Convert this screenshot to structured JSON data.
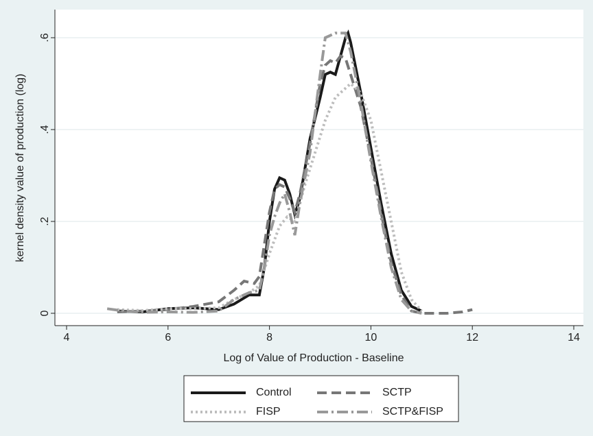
{
  "chart_data": {
    "type": "line",
    "xlabel": "Log of Value of Production - Baseline",
    "ylabel": "kernel density value of production (log)",
    "xlim": [
      4,
      14
    ],
    "xticks": [
      4,
      6,
      8,
      10,
      12,
      14
    ],
    "ylim": [
      0,
      0.6
    ],
    "yticks": [
      0,
      {
        "value": 0.2,
        "label": ".2"
      },
      {
        "value": 0.4,
        "label": ".4"
      },
      {
        "value": 0.6,
        "label": ".6"
      }
    ],
    "grid": true,
    "series": [
      {
        "name": "Control",
        "color": "#1a1a1a",
        "line_style": "solid",
        "x": [
          5,
          5.5,
          6,
          6.5,
          7,
          7.3,
          7.6,
          7.8,
          7.9,
          8.0,
          8.1,
          8.2,
          8.3,
          8.4,
          8.5,
          8.6,
          8.8,
          9.0,
          9.1,
          9.2,
          9.3,
          9.4,
          9.5,
          9.55,
          9.6,
          9.8,
          10,
          10.2,
          10.4,
          10.6,
          10.8,
          11
        ],
        "values": [
          0.005,
          0.003,
          0.01,
          0.012,
          0.008,
          0.02,
          0.04,
          0.04,
          0.1,
          0.2,
          0.27,
          0.295,
          0.29,
          0.26,
          0.215,
          0.25,
          0.38,
          0.47,
          0.52,
          0.525,
          0.52,
          0.56,
          0.6,
          0.61,
          0.59,
          0.48,
          0.36,
          0.24,
          0.13,
          0.05,
          0.015,
          0.005
        ]
      },
      {
        "name": "SCTP",
        "color": "#777777",
        "line_style": "dash",
        "x": [
          5,
          5.5,
          6,
          6.5,
          7,
          7.3,
          7.5,
          7.7,
          7.8,
          7.9,
          8.0,
          8.1,
          8.2,
          8.3,
          8.4,
          8.5,
          8.6,
          8.8,
          9.0,
          9.1,
          9.2,
          9.3,
          9.4,
          9.5,
          9.6,
          9.8,
          10,
          10.2,
          10.4,
          10.6,
          10.8,
          11,
          11.5,
          11.8,
          12
        ],
        "values": [
          0.003,
          0.005,
          0.008,
          0.015,
          0.025,
          0.05,
          0.07,
          0.065,
          0.08,
          0.15,
          0.22,
          0.27,
          0.28,
          0.275,
          0.25,
          0.22,
          0.26,
          0.37,
          0.5,
          0.54,
          0.55,
          0.545,
          0.56,
          0.555,
          0.52,
          0.45,
          0.34,
          0.22,
          0.11,
          0.04,
          0.005,
          0,
          0,
          0.003,
          0.008
        ]
      },
      {
        "name": "FISP",
        "color": "#bdbdbd",
        "line_style": "dot",
        "x": [
          5,
          5.5,
          6,
          6.5,
          7,
          7.3,
          7.6,
          7.8,
          8.0,
          8.2,
          8.35,
          8.5,
          8.7,
          8.9,
          9.1,
          9.3,
          9.5,
          9.6,
          9.8,
          10,
          10.2,
          10.4,
          10.6,
          10.8,
          11
        ],
        "values": [
          0.008,
          0.006,
          0.01,
          0.01,
          0.012,
          0.03,
          0.045,
          0.06,
          0.13,
          0.19,
          0.21,
          0.2,
          0.28,
          0.35,
          0.42,
          0.47,
          0.49,
          0.5,
          0.48,
          0.42,
          0.31,
          0.2,
          0.09,
          0.03,
          0.005
        ]
      },
      {
        "name": "SCTP&FISP",
        "color": "#999999",
        "line_style": "dashdot",
        "x": [
          4.8,
          5.2,
          5.5,
          6,
          6.5,
          7,
          7.3,
          7.6,
          7.8,
          7.9,
          8.0,
          8.1,
          8.2,
          8.3,
          8.4,
          8.5,
          8.6,
          8.8,
          9.0,
          9.1,
          9.3,
          9.5,
          9.6,
          9.8,
          10,
          10.2,
          10.4,
          10.6,
          10.8,
          11
        ],
        "values": [
          0.01,
          0.004,
          0.002,
          0.003,
          0.002,
          0.005,
          0.03,
          0.045,
          0.05,
          0.1,
          0.17,
          0.21,
          0.24,
          0.26,
          0.22,
          0.17,
          0.24,
          0.35,
          0.52,
          0.6,
          0.61,
          0.61,
          0.57,
          0.46,
          0.33,
          0.21,
          0.1,
          0.03,
          0.005,
          0
        ]
      }
    ]
  }
}
